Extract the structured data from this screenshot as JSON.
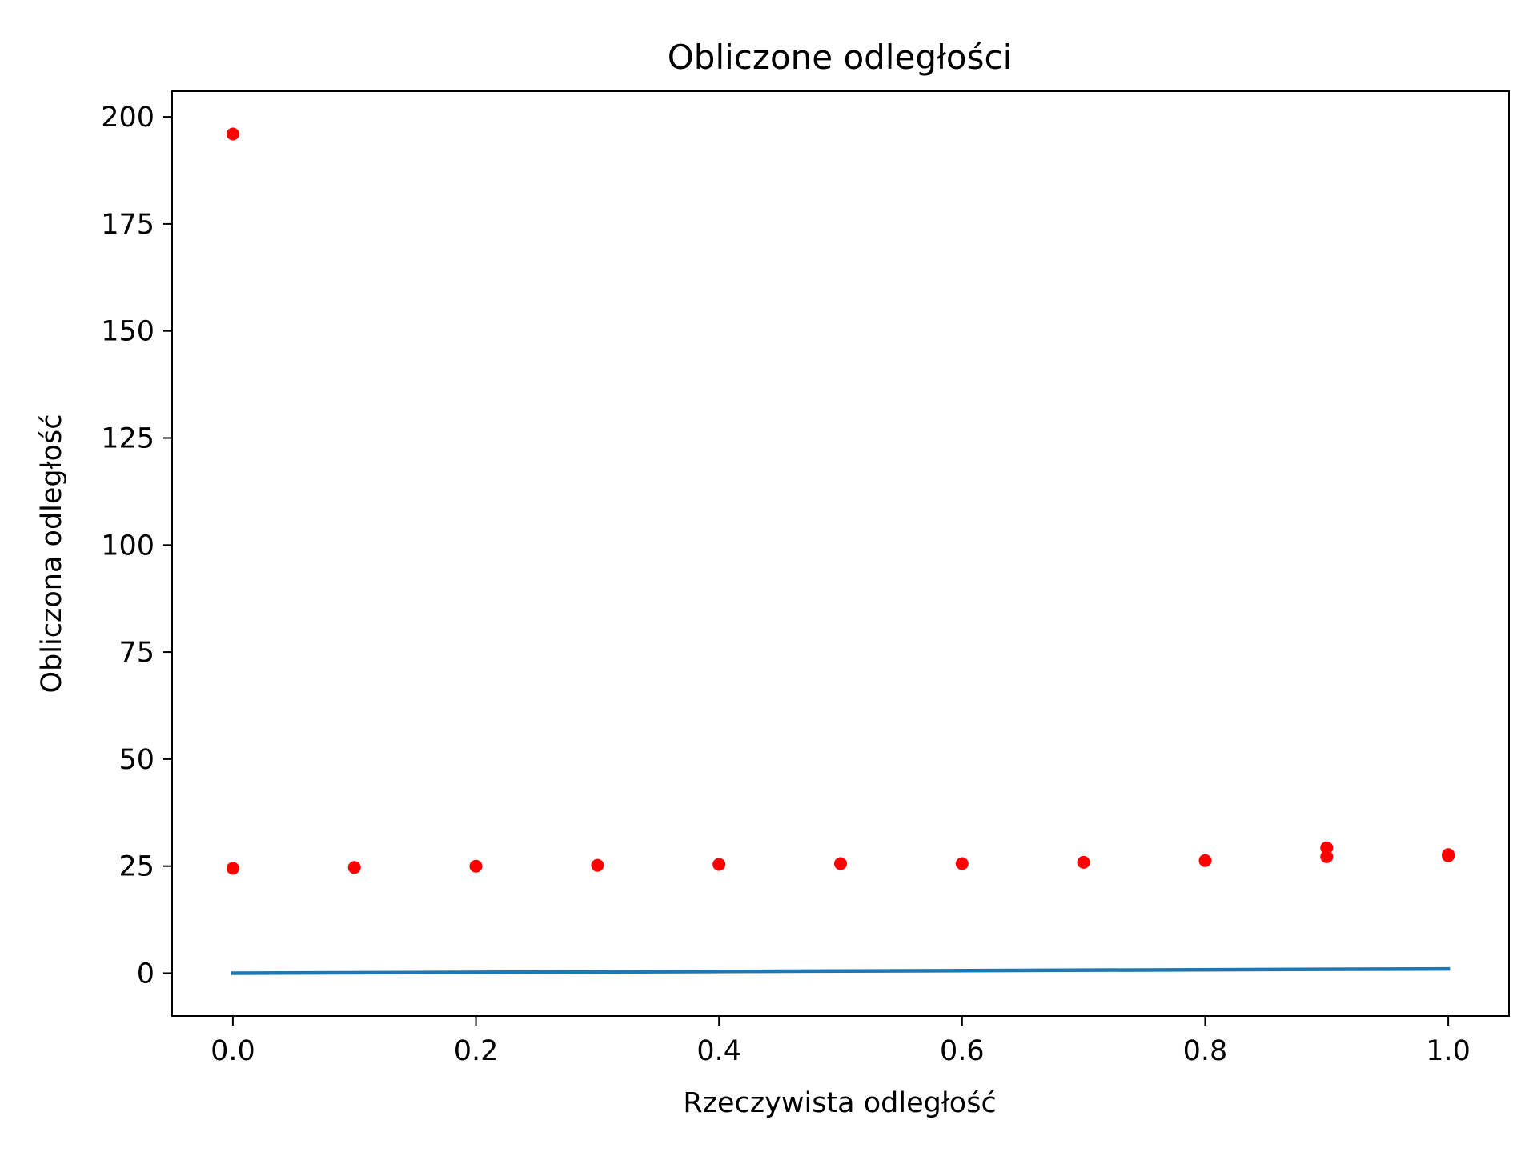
{
  "chart_data": {
    "type": "scatter",
    "title": "Obliczone odległości",
    "xlabel": "Rzeczywista odległość",
    "ylabel": "Obliczona odległość",
    "xlim": [
      -0.05,
      1.05
    ],
    "ylim": [
      -10,
      206
    ],
    "x_ticks": [
      0.0,
      0.2,
      0.4,
      0.6,
      0.8,
      1.0
    ],
    "x_tick_labels": [
      "0.0",
      "0.2",
      "0.4",
      "0.6",
      "0.8",
      "1.0"
    ],
    "y_ticks": [
      0,
      25,
      50,
      75,
      100,
      125,
      150,
      175,
      200
    ],
    "y_tick_labels": [
      "0",
      "25",
      "50",
      "75",
      "100",
      "125",
      "150",
      "175",
      "200"
    ],
    "grid": false,
    "series": [
      {
        "kind": "scatter",
        "color": "#ff0000",
        "points": [
          {
            "x": 0.0,
            "y": 196.0
          },
          {
            "x": 0.0,
            "y": 24.5
          },
          {
            "x": 0.1,
            "y": 24.7
          },
          {
            "x": 0.2,
            "y": 25.0
          },
          {
            "x": 0.3,
            "y": 25.2
          },
          {
            "x": 0.4,
            "y": 25.4
          },
          {
            "x": 0.5,
            "y": 25.6
          },
          {
            "x": 0.6,
            "y": 25.6
          },
          {
            "x": 0.7,
            "y": 25.9
          },
          {
            "x": 0.8,
            "y": 26.3
          },
          {
            "x": 0.9,
            "y": 29.3
          },
          {
            "x": 0.9,
            "y": 27.2
          },
          {
            "x": 1.0,
            "y": 27.7
          },
          {
            "x": 1.0,
            "y": 27.4
          }
        ]
      },
      {
        "kind": "line",
        "color": "#1f77b4",
        "points": [
          {
            "x": 0.0,
            "y": 0.0
          },
          {
            "x": 1.0,
            "y": 1.0
          }
        ]
      }
    ]
  }
}
